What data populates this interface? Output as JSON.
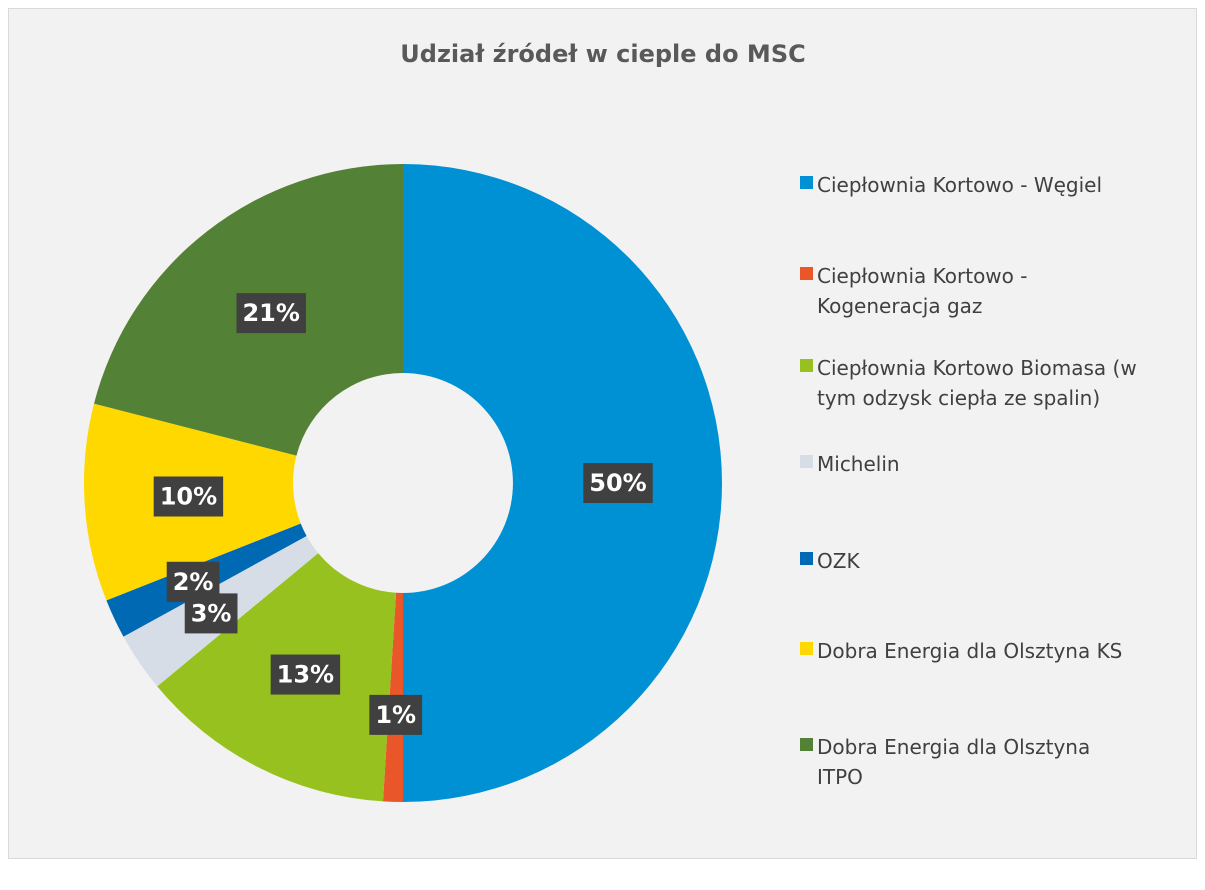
{
  "chart_data": {
    "type": "donut",
    "title": "Udział źródeł w cieple do MSC",
    "categories": [
      "Ciepłownia Kortowo - Węgiel",
      "Ciepłownia Kortowo - Kogeneracja gaz",
      "Ciepłownia Kortowo Biomasa (w tym odzysk ciepła ze spalin)",
      "Michelin",
      "OZK",
      "Dobra Energia dla Olsztyna KS",
      "Dobra Energia dla Olsztyna ITPO"
    ],
    "values": [
      50,
      1,
      13,
      3,
      2,
      10,
      21
    ],
    "value_labels": [
      "50%",
      "1%",
      "13%",
      "3%",
      "2%",
      "10%",
      "21%"
    ],
    "colors": [
      "#0090d4",
      "#e8562a",
      "#96c11f",
      "#d6dde6",
      "#0069b4",
      "#ffd800",
      "#538135"
    ],
    "legend": "right"
  }
}
